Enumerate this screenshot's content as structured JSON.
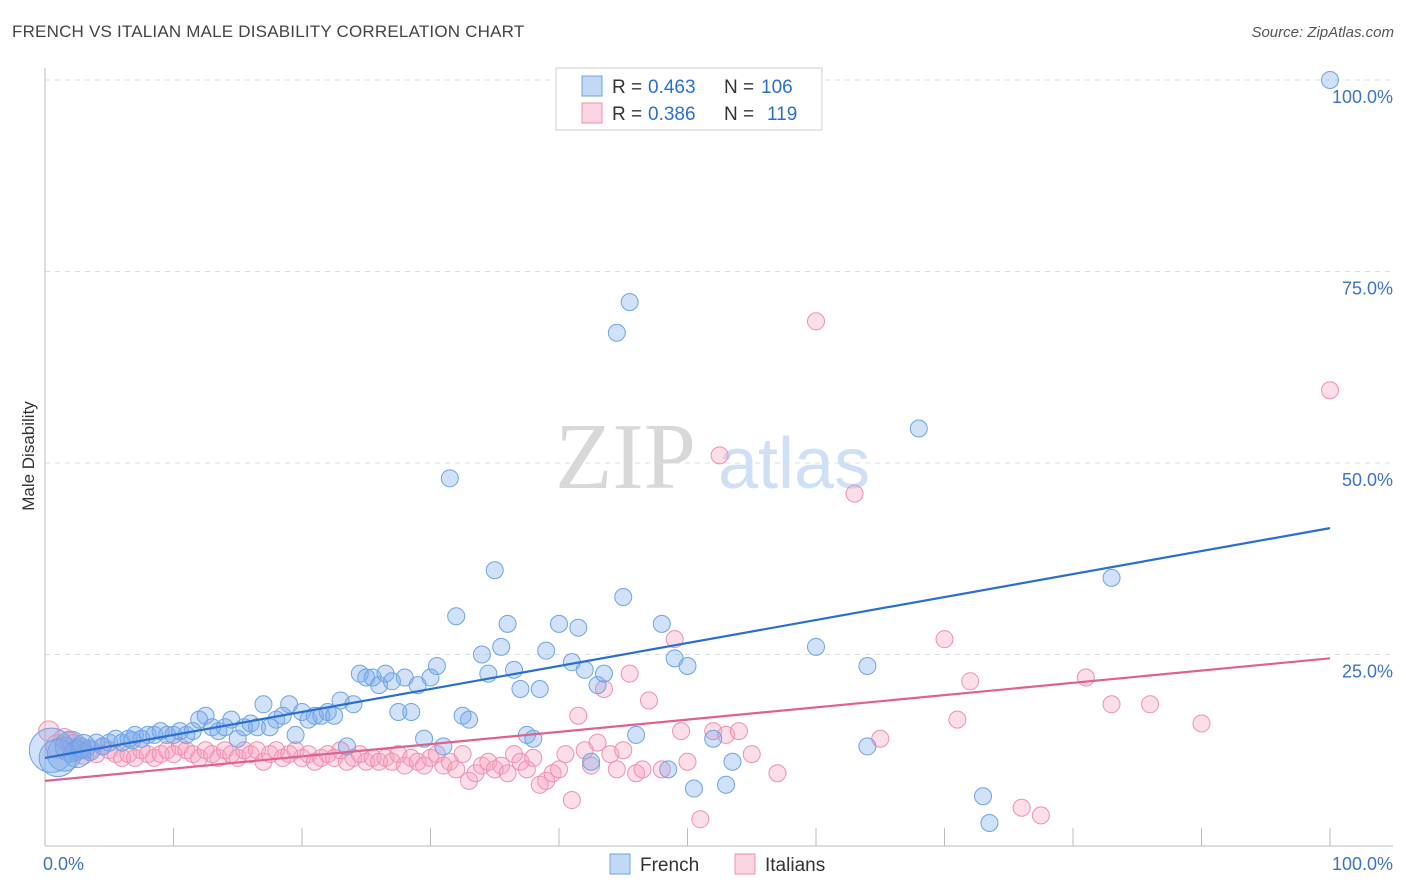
{
  "header": {
    "title": "FRENCH VS ITALIAN MALE DISABILITY CORRELATION CHART",
    "source": "Source: ZipAtlas.com"
  },
  "watermark": {
    "zip": "ZIP",
    "atlas": "atlas"
  },
  "colors": {
    "french": "#6fa3e6",
    "french_fill": "rgba(120,170,235,0.35)",
    "french_line": "#2a6fd0",
    "italians": "#f08fb0",
    "italians_fill": "rgba(245,160,190,0.35)",
    "italians_line": "#e0608e",
    "tick_label": "#3b74c6"
  },
  "legend": {
    "rows": [
      {
        "r_label": "R =",
        "r_value": "0.463",
        "n_label": "N =",
        "n_value": "106"
      },
      {
        "r_label": "R =",
        "r_value": "0.386",
        "n_label": "N =",
        "n_value": "119"
      }
    ]
  },
  "bottom_legend": {
    "french": "French",
    "italians": "Italians"
  },
  "chart_data": {
    "type": "scatter",
    "title": "FRENCH VS ITALIAN MALE DISABILITY CORRELATION CHART",
    "xlabel": "",
    "ylabel": "Male Disability",
    "xlim": [
      0,
      100
    ],
    "ylim": [
      0,
      100
    ],
    "x_tick_labels": [
      "0.0%",
      "100.0%"
    ],
    "y_ticks": [
      25,
      50,
      75,
      100
    ],
    "y_tick_labels": [
      "25.0%",
      "50.0%",
      "75.0%",
      "100.0%"
    ],
    "grid": true,
    "legend_position": "top-center",
    "series": [
      {
        "name": "French",
        "r": 0.463,
        "n": 106,
        "trend": {
          "x0": 0,
          "y0": 11.5,
          "x1": 100,
          "y1": 41.5
        },
        "points": [
          [
            0.5,
            12.5,
            26
          ],
          [
            1.5,
            12.0,
            20
          ],
          [
            2.0,
            13.0,
            18
          ],
          [
            2.5,
            12.0,
            16
          ],
          [
            3.0,
            13.0,
            14
          ],
          [
            3.5,
            12.5,
            12
          ],
          [
            4.0,
            13.5,
            10
          ],
          [
            4.5,
            13.0,
            10
          ],
          [
            5.0,
            13.5,
            10
          ],
          [
            5.5,
            14.0,
            10
          ],
          [
            6.0,
            13.5,
            10
          ],
          [
            6.5,
            14.0,
            10
          ],
          [
            7.0,
            14.5,
            10
          ],
          [
            7.5,
            14.0,
            10
          ],
          [
            8.0,
            14.5,
            10
          ],
          [
            8.5,
            14.5,
            10
          ],
          [
            9.0,
            15.0,
            10
          ],
          [
            9.5,
            14.5,
            10
          ],
          [
            10.0,
            14.5,
            10
          ],
          [
            10.5,
            15.0,
            10
          ],
          [
            11.0,
            14.5,
            10
          ],
          [
            11.5,
            15.0,
            10
          ],
          [
            12.0,
            16.5,
            10
          ],
          [
            12.5,
            17.0,
            10
          ],
          [
            13.0,
            15.5,
            10
          ],
          [
            13.5,
            15.0,
            10
          ],
          [
            14.0,
            15.5,
            10
          ],
          [
            14.5,
            16.5,
            10
          ],
          [
            15.0,
            14.0,
            10
          ],
          [
            15.5,
            15.5,
            10
          ],
          [
            16.0,
            16.0,
            10
          ],
          [
            16.5,
            15.5,
            10
          ],
          [
            17.0,
            18.5,
            10
          ],
          [
            17.5,
            15.5,
            10
          ],
          [
            18.0,
            16.5,
            10
          ],
          [
            18.5,
            17.0,
            10
          ],
          [
            19.0,
            18.5,
            10
          ],
          [
            19.5,
            14.5,
            10
          ],
          [
            20.0,
            17.5,
            10
          ],
          [
            20.5,
            16.5,
            10
          ],
          [
            21.0,
            17.0,
            10
          ],
          [
            21.5,
            17.0,
            10
          ],
          [
            22.0,
            17.5,
            10
          ],
          [
            22.5,
            17.0,
            10
          ],
          [
            23.0,
            19.0,
            10
          ],
          [
            23.5,
            13.0,
            10
          ],
          [
            24.0,
            18.5,
            10
          ],
          [
            24.5,
            22.5,
            10
          ],
          [
            25.0,
            22.0,
            10
          ],
          [
            25.5,
            22.0,
            10
          ],
          [
            26.0,
            21.0,
            10
          ],
          [
            26.5,
            22.5,
            10
          ],
          [
            27.0,
            21.5,
            10
          ],
          [
            27.5,
            17.5,
            10
          ],
          [
            28.0,
            22.0,
            10
          ],
          [
            28.5,
            17.5,
            10
          ],
          [
            29.0,
            21.0,
            10
          ],
          [
            29.5,
            14.0,
            10
          ],
          [
            30.0,
            22.0,
            10
          ],
          [
            30.5,
            23.5,
            10
          ],
          [
            31.0,
            13.0,
            10
          ],
          [
            31.5,
            48.0,
            10
          ],
          [
            32.0,
            30.0,
            10
          ],
          [
            32.5,
            17.0,
            10
          ],
          [
            33.0,
            16.5,
            10
          ],
          [
            34.0,
            25.0,
            10
          ],
          [
            34.5,
            22.5,
            10
          ],
          [
            35.0,
            36.0,
            10
          ],
          [
            35.5,
            26.0,
            10
          ],
          [
            36.0,
            29.0,
            10
          ],
          [
            36.5,
            23.0,
            10
          ],
          [
            37.0,
            20.5,
            10
          ],
          [
            37.5,
            14.5,
            10
          ],
          [
            38.0,
            14.0,
            10
          ],
          [
            38.5,
            20.5,
            10
          ],
          [
            39.0,
            25.5,
            10
          ],
          [
            40.0,
            29.0,
            10
          ],
          [
            41.0,
            24.0,
            10
          ],
          [
            41.5,
            28.5,
            10
          ],
          [
            42.0,
            23.0,
            10
          ],
          [
            42.5,
            11.0,
            10
          ],
          [
            43.0,
            21.0,
            10
          ],
          [
            43.5,
            22.5,
            10
          ],
          [
            44.5,
            67.0,
            10
          ],
          [
            45.0,
            32.5,
            10
          ],
          [
            45.5,
            71.0,
            10
          ],
          [
            46.0,
            14.5,
            10
          ],
          [
            48.0,
            29.0,
            10
          ],
          [
            48.5,
            10.0,
            10
          ],
          [
            49.0,
            24.5,
            10
          ],
          [
            50.0,
            23.5,
            10
          ],
          [
            50.5,
            7.5,
            10
          ],
          [
            52.0,
            14.0,
            10
          ],
          [
            53.0,
            8.0,
            10
          ],
          [
            53.5,
            11.0,
            10
          ],
          [
            60.0,
            26.0,
            10
          ],
          [
            64.0,
            23.5,
            10
          ],
          [
            64.0,
            13.0,
            10
          ],
          [
            68.0,
            54.5,
            10
          ],
          [
            73.0,
            6.5,
            10
          ],
          [
            73.5,
            3.0,
            10
          ],
          [
            83.0,
            35.0,
            10
          ],
          [
            100.0,
            100.0,
            10
          ],
          [
            1.0,
            11.5,
            22
          ],
          [
            2.8,
            12.8,
            12
          ],
          [
            6.8,
            13.8,
            10
          ]
        ]
      },
      {
        "name": "Italians",
        "r": 0.386,
        "n": 119,
        "trend": {
          "x0": 0,
          "y0": 8.5,
          "x1": 100,
          "y1": 24.5
        },
        "points": [
          [
            0.3,
            15.0,
            12
          ],
          [
            1.0,
            13.0,
            14
          ],
          [
            1.5,
            14.0,
            12
          ],
          [
            2.0,
            13.5,
            12
          ],
          [
            2.5,
            12.5,
            12
          ],
          [
            3.0,
            12.0,
            12
          ],
          [
            3.5,
            12.5,
            10
          ],
          [
            4.0,
            12.0,
            10
          ],
          [
            4.5,
            13.0,
            10
          ],
          [
            5.0,
            12.5,
            10
          ],
          [
            5.5,
            12.0,
            10
          ],
          [
            6.0,
            11.5,
            10
          ],
          [
            6.5,
            12.0,
            10
          ],
          [
            7.0,
            11.5,
            10
          ],
          [
            7.5,
            12.5,
            10
          ],
          [
            8.0,
            12.0,
            10
          ],
          [
            8.5,
            11.5,
            10
          ],
          [
            9.0,
            12.0,
            10
          ],
          [
            9.5,
            12.5,
            10
          ],
          [
            10.0,
            12.0,
            10
          ],
          [
            10.5,
            13.0,
            10
          ],
          [
            11.0,
            12.5,
            10
          ],
          [
            11.5,
            12.0,
            10
          ],
          [
            12.0,
            11.5,
            10
          ],
          [
            12.5,
            12.5,
            10
          ],
          [
            13.0,
            12.0,
            10
          ],
          [
            13.5,
            11.5,
            10
          ],
          [
            14.0,
            12.5,
            10
          ],
          [
            14.5,
            12.0,
            10
          ],
          [
            15.0,
            11.5,
            10
          ],
          [
            15.5,
            12.5,
            10
          ],
          [
            16.0,
            12.0,
            10
          ],
          [
            16.5,
            12.5,
            10
          ],
          [
            17.0,
            11.0,
            10
          ],
          [
            17.5,
            12.0,
            10
          ],
          [
            18.0,
            12.5,
            10
          ],
          [
            18.5,
            11.5,
            10
          ],
          [
            19.0,
            12.0,
            10
          ],
          [
            19.5,
            12.5,
            10
          ],
          [
            20.0,
            11.5,
            10
          ],
          [
            20.5,
            12.0,
            10
          ],
          [
            21.0,
            11.0,
            10
          ],
          [
            21.5,
            11.5,
            10
          ],
          [
            22.0,
            12.0,
            10
          ],
          [
            22.5,
            11.5,
            10
          ],
          [
            23.0,
            12.5,
            10
          ],
          [
            23.5,
            11.0,
            10
          ],
          [
            24.0,
            11.5,
            10
          ],
          [
            24.5,
            12.0,
            10
          ],
          [
            25.0,
            11.0,
            10
          ],
          [
            25.5,
            11.5,
            10
          ],
          [
            26.0,
            11.0,
            10
          ],
          [
            26.5,
            11.5,
            10
          ],
          [
            27.0,
            11.0,
            10
          ],
          [
            27.5,
            12.0,
            10
          ],
          [
            28.0,
            10.5,
            10
          ],
          [
            28.5,
            11.5,
            10
          ],
          [
            29.0,
            11.0,
            10
          ],
          [
            29.5,
            10.5,
            10
          ],
          [
            30.0,
            11.5,
            10
          ],
          [
            30.5,
            12.0,
            10
          ],
          [
            31.0,
            10.5,
            10
          ],
          [
            31.5,
            11.0,
            10
          ],
          [
            32.0,
            10.0,
            10
          ],
          [
            32.5,
            12.0,
            10
          ],
          [
            33.0,
            8.5,
            10
          ],
          [
            33.5,
            9.5,
            10
          ],
          [
            34.0,
            10.5,
            10
          ],
          [
            34.5,
            11.0,
            10
          ],
          [
            35.0,
            10.0,
            10
          ],
          [
            35.5,
            10.5,
            10
          ],
          [
            36.0,
            9.5,
            10
          ],
          [
            36.5,
            12.0,
            10
          ],
          [
            37.0,
            11.0,
            10
          ],
          [
            37.5,
            10.0,
            10
          ],
          [
            38.0,
            11.5,
            10
          ],
          [
            38.5,
            8.0,
            10
          ],
          [
            39.0,
            8.5,
            10
          ],
          [
            39.5,
            9.5,
            10
          ],
          [
            40.0,
            10.0,
            10
          ],
          [
            40.5,
            12.0,
            10
          ],
          [
            41.0,
            6.0,
            10
          ],
          [
            41.5,
            17.0,
            10
          ],
          [
            42.0,
            12.5,
            10
          ],
          [
            42.5,
            10.5,
            10
          ],
          [
            43.0,
            13.5,
            10
          ],
          [
            43.5,
            20.5,
            10
          ],
          [
            44.0,
            12.0,
            10
          ],
          [
            44.5,
            10.0,
            10
          ],
          [
            45.0,
            12.5,
            10
          ],
          [
            45.5,
            22.5,
            10
          ],
          [
            46.0,
            9.5,
            10
          ],
          [
            46.5,
            10.0,
            10
          ],
          [
            47.0,
            19.0,
            10
          ],
          [
            48.0,
            10.0,
            10
          ],
          [
            49.0,
            27.0,
            10
          ],
          [
            49.5,
            15.0,
            10
          ],
          [
            50.0,
            11.0,
            10
          ],
          [
            51.0,
            3.5,
            10
          ],
          [
            52.0,
            15.0,
            10
          ],
          [
            52.5,
            51.0,
            10
          ],
          [
            53.0,
            14.5,
            10
          ],
          [
            54.0,
            15.0,
            10
          ],
          [
            55.0,
            12.0,
            10
          ],
          [
            57.0,
            9.5,
            10
          ],
          [
            60.0,
            68.5,
            10
          ],
          [
            63.0,
            46.0,
            10
          ],
          [
            65.0,
            14.0,
            10
          ],
          [
            70.0,
            27.0,
            10
          ],
          [
            71.0,
            16.5,
            10
          ],
          [
            72.0,
            21.5,
            10
          ],
          [
            76.0,
            5.0,
            10
          ],
          [
            77.5,
            4.0,
            10
          ],
          [
            81.0,
            22.0,
            10
          ],
          [
            83.0,
            18.5,
            10
          ],
          [
            86.0,
            18.5,
            10
          ],
          [
            90.0,
            16.0,
            10
          ],
          [
            100.0,
            59.5,
            10
          ],
          [
            2.2,
            13.2,
            12
          ]
        ]
      }
    ]
  }
}
